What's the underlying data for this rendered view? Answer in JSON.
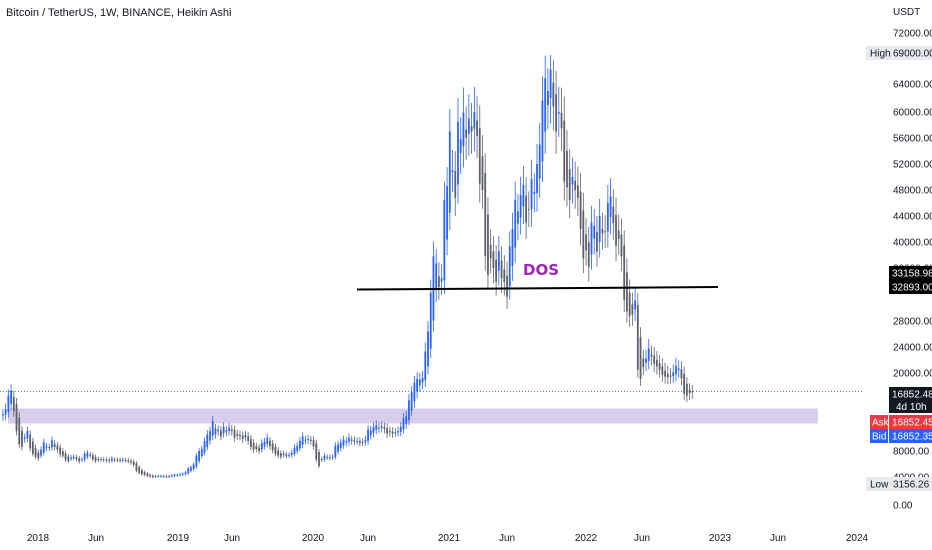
{
  "chart_data": {
    "type": "candlestick",
    "title": "Bitcoin / TetherUS, 1W, BINANCE, Heikin Ashi",
    "currency": "USDT",
    "y_ticks": [
      "72000.00",
      "64000.00",
      "60000.00",
      "56000.00",
      "52000.00",
      "48000.00",
      "44000.00",
      "40000.00",
      "36000.00",
      "28000.00",
      "24000.00",
      "20000.00",
      "8000.00",
      "4000.00",
      "0.00"
    ],
    "x_ticks": [
      "2018",
      "Jun",
      "2019",
      "Jun",
      "2020",
      "Jun",
      "2021",
      "Jun",
      "2022",
      "Jun",
      "2023",
      "Jun",
      "2024"
    ],
    "price_tags": {
      "high_label": "High",
      "high_value": "69000.00",
      "level_upper": "33158.98",
      "level_lower": "32893.00",
      "last": "16852.48",
      "countdown": "4d 10h",
      "ask_label": "Ask",
      "ask_value": "16852.45",
      "bid_label": "Bid",
      "bid_value": "16852.35",
      "low_label": "Low",
      "low_value": "3156.26"
    },
    "annotation": "DOS",
    "levels": {
      "horizontal_line_price": 33000,
      "support_zone": [
        11500,
        14300
      ],
      "last_price": 16852.48
    },
    "colors": {
      "up": "#2962ff",
      "down": "#5d606b",
      "zone": "#d1c4e9",
      "annotation": "#9c27b0",
      "ask": "#f23645",
      "bid": "#2962ff",
      "last": "#131722"
    },
    "series_close": [
      13500,
      14300,
      16300,
      17100,
      14000,
      11000,
      9000,
      8600,
      10000,
      11000,
      8400,
      7500,
      7000,
      6700,
      8200,
      9300,
      8700,
      8500,
      9600,
      8600,
      8200,
      7400,
      7200,
      6500,
      6300,
      6900,
      7000,
      6600,
      6200,
      6600,
      7500,
      7700,
      7200,
      6600,
      6300,
      6400,
      6600,
      6500,
      6400,
      6300,
      6700,
      6500,
      6400,
      6300,
      6500,
      6400,
      6200,
      6000,
      5600,
      4600,
      4200,
      4000,
      3900,
      3700,
      3600,
      3500,
      3600,
      3700,
      3700,
      3600,
      3500,
      3700,
      3800,
      3900,
      3900,
      4000,
      4100,
      4300,
      5000,
      5200,
      5700,
      7200,
      8000,
      8300,
      9500,
      10500,
      11000,
      12500,
      10500,
      11200,
      10200,
      11600,
      10900,
      11500,
      11000,
      10000,
      10300,
      10200,
      9800,
      10400,
      9500,
      8600,
      8200,
      8300,
      8000,
      9200,
      9400,
      10000,
      8700,
      8100,
      7500,
      7200,
      7000,
      7600,
      7100,
      7300,
      7700,
      8500,
      8800,
      9500,
      10200,
      9700,
      9800,
      9500,
      8700,
      6500,
      5400,
      6500,
      7200,
      7000,
      6800,
      7000,
      8800,
      9000,
      9300,
      9700,
      9500,
      10000,
      9500,
      9400,
      9500,
      9200,
      9300,
      9700,
      11200,
      11100,
      11600,
      11900,
      11400,
      11700,
      11300,
      10600,
      10800,
      10600,
      10800,
      11000,
      11600,
      12900,
      13200,
      15600,
      16800,
      18400,
      19000,
      18900,
      19200,
      23300,
      26400,
      32400,
      37800,
      36700,
      33300,
      34500,
      46500,
      48600,
      57000,
      51100,
      46800,
      58500,
      55800,
      59900,
      56000,
      59000,
      57000,
      60000,
      56300,
      49000,
      48000,
      37800,
      35000,
      37500,
      36000,
      34000,
      38600,
      34500,
      34000,
      31800,
      39300,
      42000,
      46500,
      44700,
      47200,
      48800,
      43000,
      45000,
      49700,
      47700,
      52000,
      55000,
      61600,
      65000,
      63000,
      66500,
      60800,
      57000,
      60000,
      57500,
      49300,
      48400,
      46500,
      50000,
      48000,
      46800,
      42000,
      37500,
      38700,
      36200,
      43000,
      42500,
      38500,
      44000,
      41300,
      41600,
      46000,
      47000,
      42900,
      39400,
      40500,
      37800,
      31300,
      29500,
      28800,
      29000,
      31200,
      20500,
      19000,
      20900,
      22200,
      23800,
      22500,
      21400,
      21000,
      20500,
      19700,
      19400,
      19300,
      19400,
      20100,
      21100,
      20700,
      19100,
      16600,
      16300,
      16700,
      16852
    ]
  }
}
